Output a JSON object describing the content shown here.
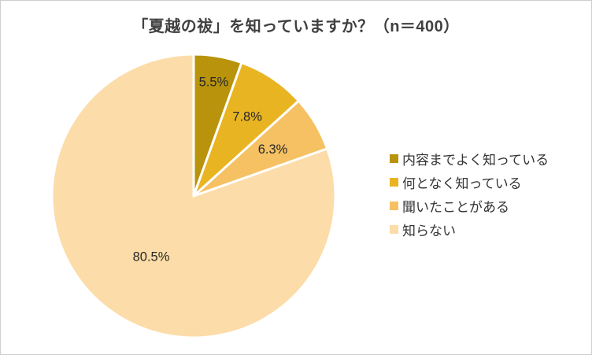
{
  "title": "「夏越の祓」を知っていますか？（n＝400）",
  "chart_data": {
    "type": "pie",
    "title": "「夏越の祓」を知っていますか？（n＝400）",
    "categories": [
      "内容までよく知っている",
      "何となく知っている",
      "聞いたことがある",
      "知らない"
    ],
    "values": [
      5.5,
      7.8,
      6.3,
      80.5
    ],
    "labels": [
      "5.5%",
      "7.8%",
      "6.3%",
      "80.5%"
    ],
    "colors": [
      "#b8930b",
      "#e8b422",
      "#f5c163",
      "#fcdca8"
    ],
    "start_angle_deg": 0,
    "direction": "clockwise",
    "legend_position": "right",
    "label_radius": [
      0.82,
      0.68,
      0.65,
      0.52
    ],
    "slice_border_color": "#ffffff"
  }
}
